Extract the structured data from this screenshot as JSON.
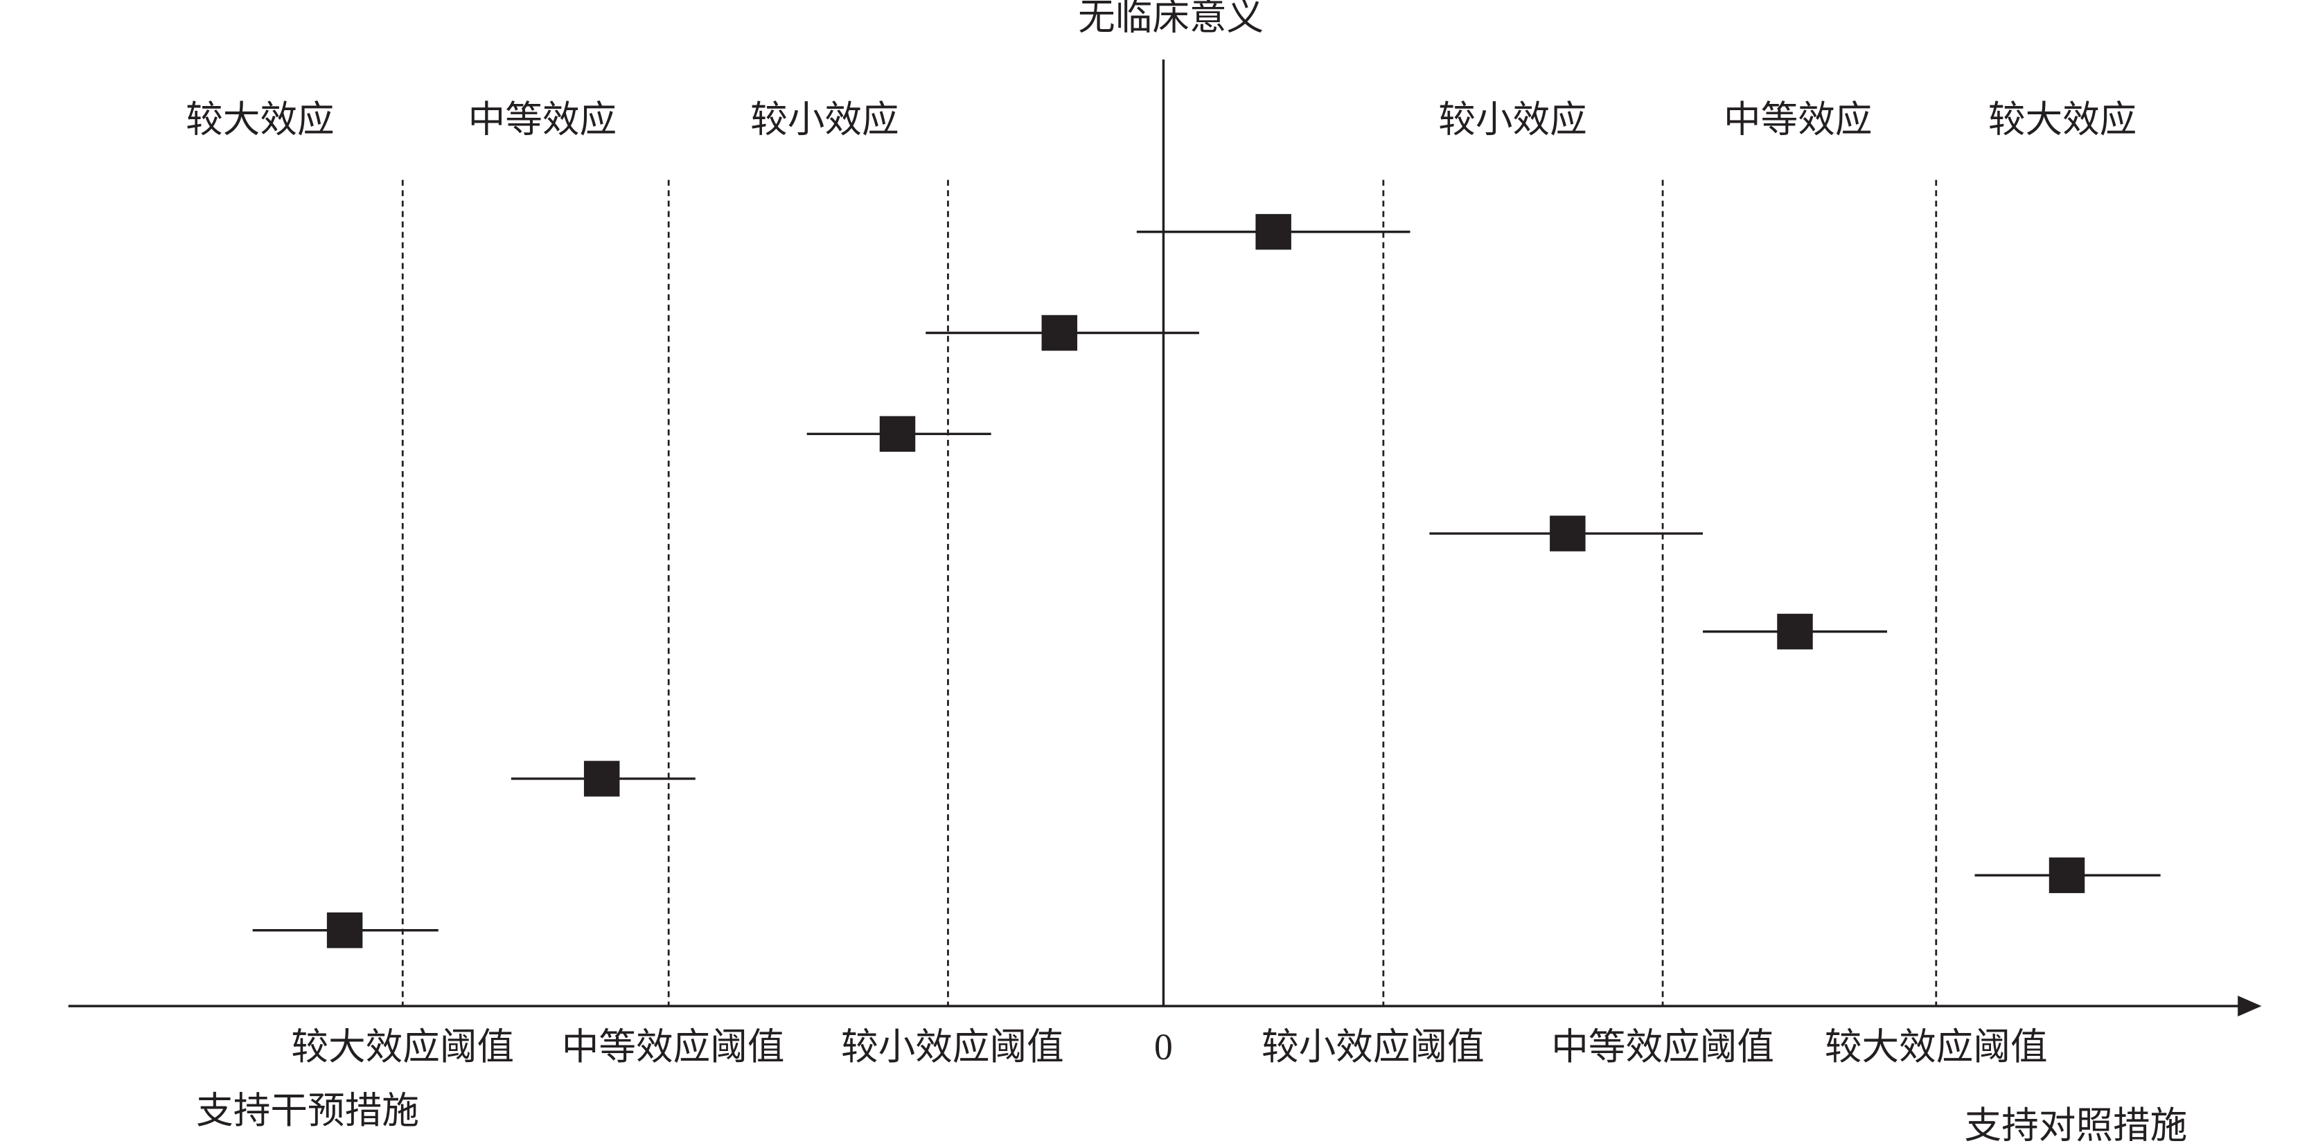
{
  "title": "无临床意义",
  "effect_labels": {
    "left": [
      "较大效应",
      "中等效应",
      "较小效应"
    ],
    "right": [
      "较小效应",
      "中等效应",
      "较大效应"
    ]
  },
  "threshold_labels": [
    "较大效应阈值",
    "中等效应阈值",
    "较小效应阈值",
    "0",
    "较小效应阈值",
    "中等效应阈值",
    "较大效应阈值"
  ],
  "direction_labels": {
    "left": "支持干预措施",
    "right": "支持对照措施"
  }
}
